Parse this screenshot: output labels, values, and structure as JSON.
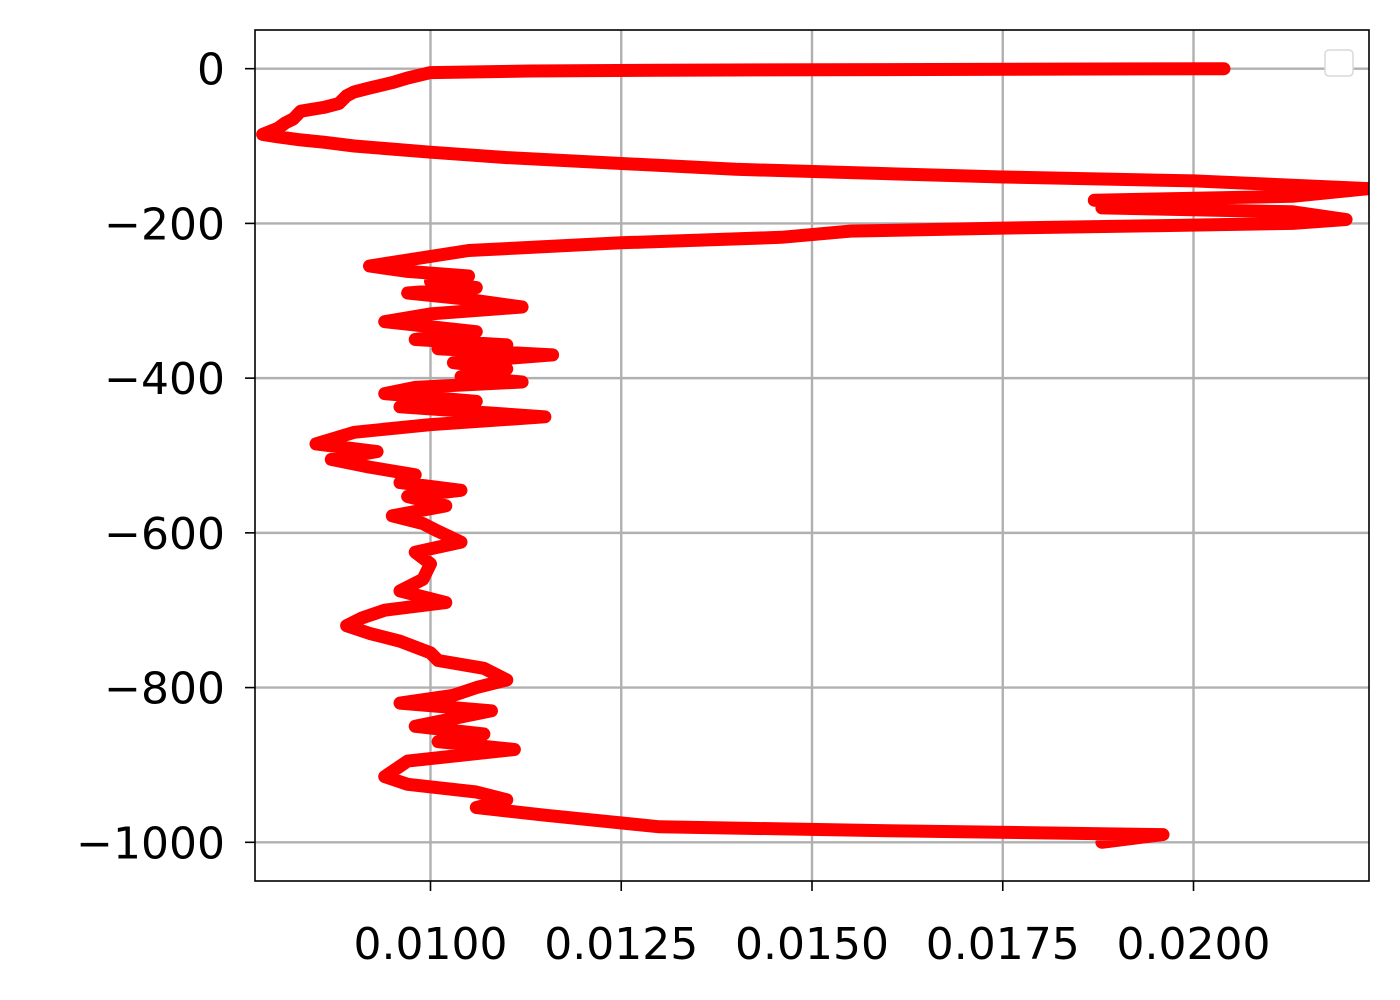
{
  "chart_data": {
    "type": "line",
    "title": "",
    "xlabel": "",
    "ylabel": "",
    "xlim": [
      0.0077,
      0.0223
    ],
    "ylim": [
      -1050,
      50
    ],
    "x_ticks": [
      0.01,
      0.0125,
      0.015,
      0.0175,
      0.02
    ],
    "x_tick_labels": [
      "0.0100",
      "0.0125",
      "0.0150",
      "0.0175",
      "0.0200"
    ],
    "y_ticks": [
      0,
      -200,
      -400,
      -600,
      -800,
      -1000
    ],
    "y_tick_labels": [
      "0",
      "−200",
      "−400",
      "−600",
      "−800",
      "−1000"
    ],
    "grid": true,
    "legend": {
      "position": "top-right",
      "entries": []
    },
    "series": [
      {
        "color": "#ff0000",
        "x": [
          0.0204,
          0.013,
          0.0113,
          0.01,
          0.0097,
          0.0095,
          0.0092,
          0.009,
          0.0089,
          0.0088,
          0.0086,
          0.0083,
          0.0082,
          0.0081,
          0.008,
          0.0078,
          0.008,
          0.0083,
          0.0086,
          0.009,
          0.01,
          0.011,
          0.014,
          0.0175,
          0.02,
          0.0223,
          0.0213,
          0.0187,
          0.0203,
          0.0188,
          0.0213,
          0.022,
          0.0213,
          0.0195,
          0.0175,
          0.0155,
          0.0146,
          0.0125,
          0.0105,
          0.0092,
          0.0097,
          0.0105,
          0.01,
          0.0106,
          0.0097,
          0.0104,
          0.0112,
          0.01,
          0.0094,
          0.0106,
          0.0098,
          0.011,
          0.0101,
          0.0116,
          0.0103,
          0.011,
          0.0104,
          0.0112,
          0.0098,
          0.0094,
          0.0106,
          0.0096,
          0.0115,
          0.01,
          0.009,
          0.0085,
          0.0093,
          0.0087,
          0.0092,
          0.0098,
          0.0096,
          0.0104,
          0.0097,
          0.0102,
          0.0095,
          0.0099,
          0.0101,
          0.0104,
          0.0098,
          0.01,
          0.0099,
          0.0096,
          0.0102,
          0.0094,
          0.0091,
          0.0089,
          0.0092,
          0.0096,
          0.01,
          0.0101,
          0.0107,
          0.011,
          0.0106,
          0.0103,
          0.0096,
          0.0108,
          0.0103,
          0.0098,
          0.0107,
          0.0101,
          0.0111,
          0.0097,
          0.0094,
          0.0097,
          0.0106,
          0.011,
          0.0106,
          0.0115,
          0.013,
          0.016,
          0.0196,
          0.0188
        ],
        "y": [
          0,
          -2,
          -3,
          -5,
          -12,
          -18,
          -25,
          -30,
          -35,
          -45,
          -50,
          -55,
          -65,
          -70,
          -77,
          -85,
          -88,
          -92,
          -95,
          -100,
          -108,
          -115,
          -130,
          -140,
          -145,
          -155,
          -165,
          -170,
          -175,
          -180,
          -185,
          -195,
          -200,
          -203,
          -206,
          -210,
          -218,
          -225,
          -235,
          -255,
          -262,
          -268,
          -275,
          -283,
          -290,
          -297,
          -308,
          -317,
          -327,
          -340,
          -350,
          -357,
          -362,
          -370,
          -380,
          -388,
          -398,
          -405,
          -412,
          -420,
          -430,
          -437,
          -450,
          -460,
          -470,
          -485,
          -495,
          -505,
          -515,
          -525,
          -535,
          -545,
          -553,
          -565,
          -578,
          -588,
          -598,
          -612,
          -625,
          -640,
          -660,
          -675,
          -690,
          -700,
          -710,
          -720,
          -730,
          -740,
          -755,
          -765,
          -775,
          -790,
          -800,
          -810,
          -820,
          -830,
          -840,
          -850,
          -860,
          -870,
          -880,
          -895,
          -915,
          -925,
          -935,
          -945,
          -955,
          -965,
          -980,
          -985,
          -990,
          -1000
        ]
      }
    ]
  }
}
